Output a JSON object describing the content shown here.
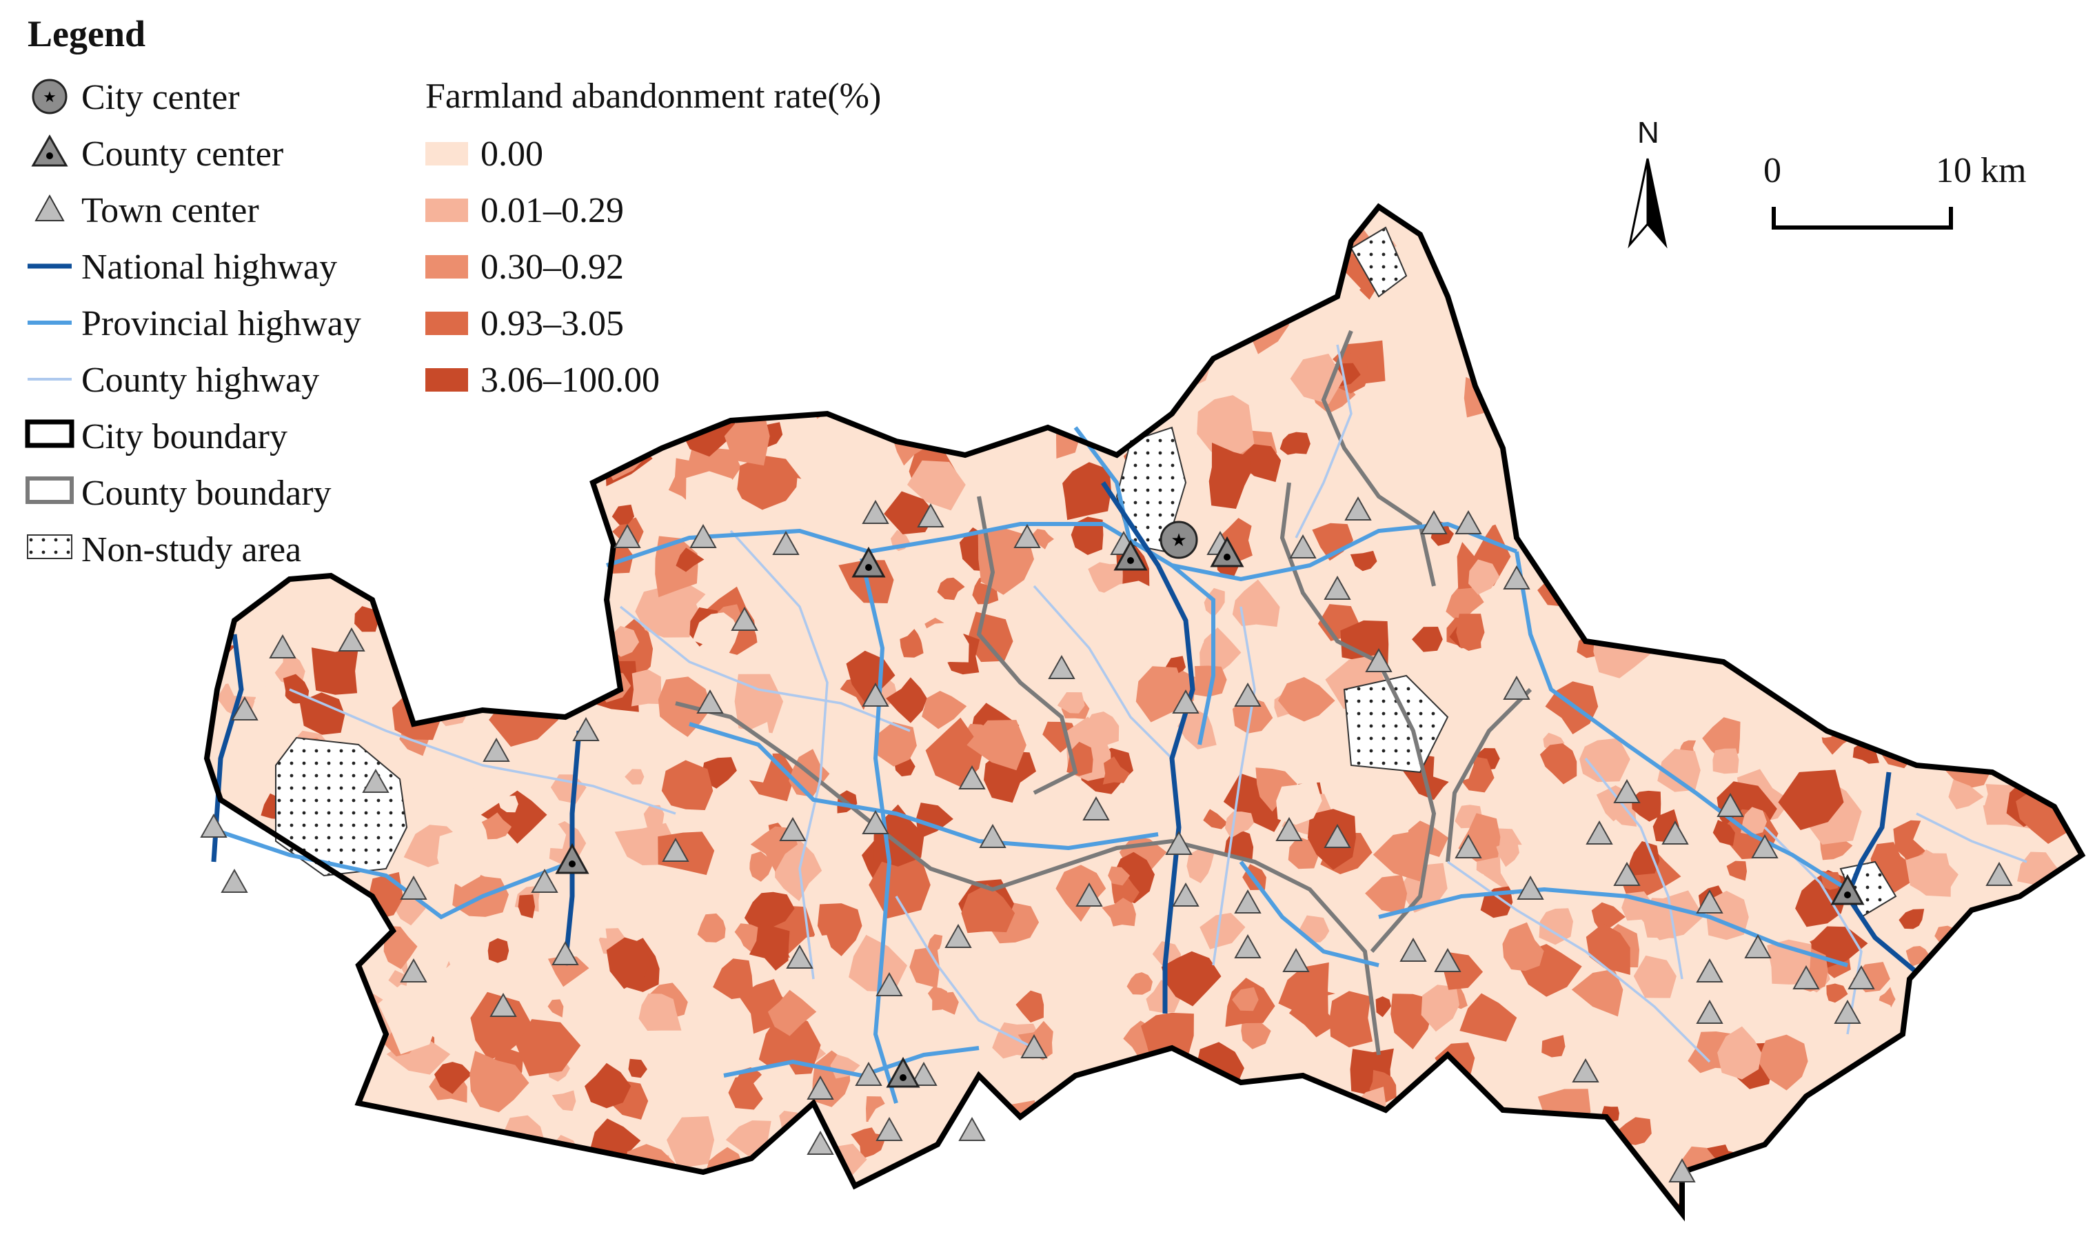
{
  "legend": {
    "title": "Legend",
    "symbols": [
      {
        "key": "city",
        "label": "City center"
      },
      {
        "key": "county",
        "label": "County center"
      },
      {
        "key": "town",
        "label": "Town center"
      },
      {
        "key": "national",
        "label": "National highway"
      },
      {
        "key": "provincial",
        "label": "Provincial highway"
      },
      {
        "key": "countyhw",
        "label": "County highway"
      },
      {
        "key": "cityb",
        "label": "City boundary"
      },
      {
        "key": "countyb",
        "label": "County boundary"
      },
      {
        "key": "nonstudy",
        "label": "Non-study area"
      }
    ],
    "rate_title": "Farmland abandonment rate(%)",
    "classes": [
      {
        "label": "0.00",
        "color": "#fde3d2"
      },
      {
        "label": "0.01–0.29",
        "color": "#f6b39a"
      },
      {
        "label": "0.30–0.92",
        "color": "#ec8e6e"
      },
      {
        "label": "0.93–3.05",
        "color": "#dd6a47"
      },
      {
        "label": "3.06–100.00",
        "color": "#c84a29"
      }
    ]
  },
  "north_arrow": {
    "label": "N"
  },
  "scale_bar": {
    "start_label": "0",
    "end_label": "10 km"
  },
  "colors": {
    "national_highway": "#0f4f99",
    "provincial_highway": "#4f9ee0",
    "county_highway": "#aec9ee",
    "city_boundary": "#000000",
    "county_boundary": "#7a7a7a",
    "marker_fill": "#bdbdbd"
  }
}
